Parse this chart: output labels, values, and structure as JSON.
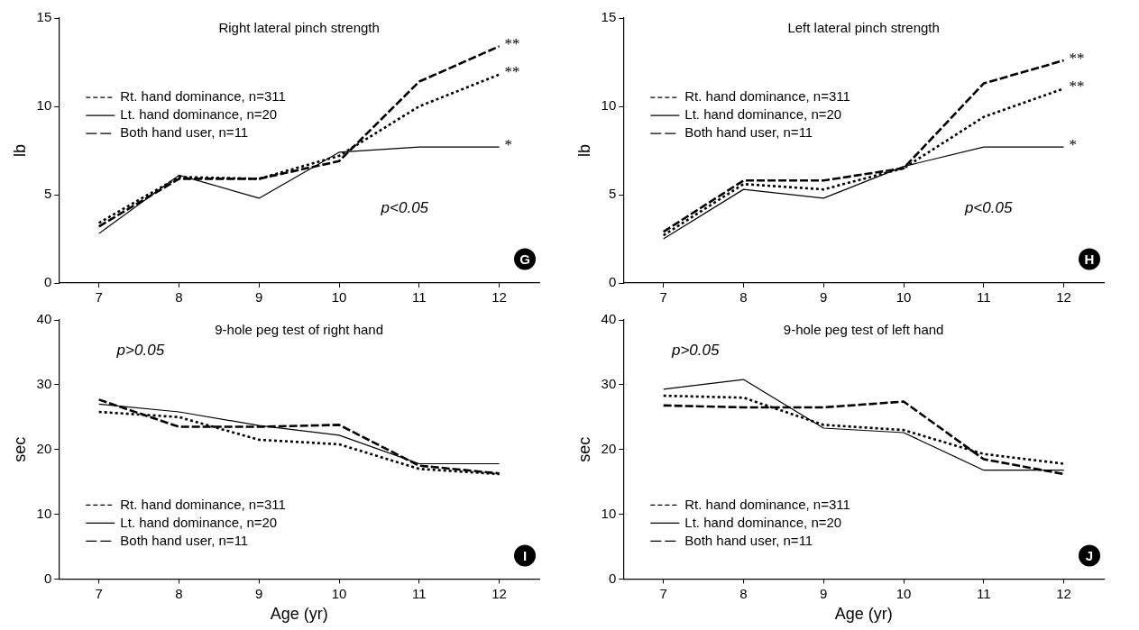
{
  "chart_data": [
    {
      "type": "line",
      "title": "Right lateral pinch strength",
      "ylabel": "lb",
      "categories": [
        "7",
        "8",
        "9",
        "10",
        "11",
        "12"
      ],
      "ylim": [
        0,
        15
      ],
      "yticks": [
        0,
        5,
        10,
        15
      ],
      "grid": false,
      "legend": "left",
      "marker": "none",
      "series": [
        {
          "name": "Rt. hand dominance, n=311",
          "color": "#000000",
          "line_style": "dotted",
          "values": [
            3.4,
            6.0,
            5.9,
            7.2,
            10.0,
            11.8
          ]
        },
        {
          "name": "Lt. hand dominance, n=20",
          "color": "#000000",
          "line_style": "solid",
          "values": [
            2.8,
            6.1,
            4.8,
            7.4,
            7.7,
            7.7
          ]
        },
        {
          "name": "Both hand user, n=11",
          "color": "#000000",
          "line_style": "dashed",
          "values": [
            3.2,
            5.9,
            5.9,
            6.9,
            11.4,
            13.4
          ]
        }
      ],
      "annotations": [
        "p<0.05",
        "G",
        {
          "text": "**",
          "x": "12",
          "y": 13.4
        },
        {
          "text": "**",
          "x": "12",
          "y": 11.8
        },
        {
          "text": "*",
          "x": "12",
          "y": 7.7
        }
      ]
    },
    {
      "type": "line",
      "title": "Left lateral pinch strength",
      "ylabel": "lb",
      "categories": [
        "7",
        "8",
        "9",
        "10",
        "11",
        "12"
      ],
      "ylim": [
        0,
        15
      ],
      "yticks": [
        0,
        5,
        10,
        15
      ],
      "grid": false,
      "legend": "left",
      "marker": "none",
      "series": [
        {
          "name": "Rt. hand dominance, n=311",
          "color": "#000000",
          "line_style": "dotted",
          "values": [
            2.7,
            5.6,
            5.3,
            6.5,
            9.4,
            11.0
          ]
        },
        {
          "name": "Lt. hand dominance, n=20",
          "color": "#000000",
          "line_style": "solid",
          "values": [
            2.5,
            5.3,
            4.8,
            6.6,
            7.7,
            7.7
          ]
        },
        {
          "name": "Both hand user, n=11",
          "color": "#000000",
          "line_style": "dashed",
          "values": [
            2.9,
            5.8,
            5.8,
            6.5,
            11.3,
            12.6
          ]
        }
      ],
      "annotations": [
        "p<0.05",
        "H",
        {
          "text": "**",
          "x": "12",
          "y": 12.6
        },
        {
          "text": "**",
          "x": "12",
          "y": 11.0
        },
        {
          "text": "*",
          "x": "12",
          "y": 7.7
        }
      ]
    },
    {
      "type": "line",
      "title": "9-hole peg test of right hand",
      "ylabel": "sec",
      "xlabel": "Age (yr)",
      "categories": [
        "7",
        "8",
        "9",
        "10",
        "11",
        "12"
      ],
      "ylim": [
        0,
        40
      ],
      "yticks": [
        0,
        10,
        20,
        30,
        40
      ],
      "grid": false,
      "legend": "bottom left",
      "marker": "none",
      "series": [
        {
          "name": "Rt. hand dominance, n=311",
          "color": "#000000",
          "line_style": "dotted",
          "values": [
            25.8,
            25.0,
            21.5,
            20.8,
            17.0,
            16.2
          ]
        },
        {
          "name": "Lt. hand dominance, n=20",
          "color": "#000000",
          "line_style": "solid",
          "values": [
            27.0,
            25.8,
            23.7,
            22.2,
            17.8,
            17.8
          ]
        },
        {
          "name": "Both hand user, n=11",
          "color": "#000000",
          "line_style": "dashed",
          "values": [
            27.7,
            23.5,
            23.5,
            23.8,
            17.5,
            16.3
          ]
        }
      ],
      "annotations": [
        "p>0.05",
        "I"
      ]
    },
    {
      "type": "line",
      "title": "9-hole peg test of left hand",
      "ylabel": "sec",
      "xlabel": "Age (yr)",
      "categories": [
        "7",
        "8",
        "9",
        "10",
        "11",
        "12"
      ],
      "ylim": [
        0,
        40
      ],
      "yticks": [
        0,
        10,
        20,
        30,
        40
      ],
      "grid": false,
      "legend": "bottom left",
      "marker": "none",
      "series": [
        {
          "name": "Rt. hand dominance, n=311",
          "color": "#000000",
          "line_style": "dotted",
          "values": [
            28.3,
            28.0,
            23.8,
            23.0,
            19.3,
            17.8
          ]
        },
        {
          "name": "Lt. hand dominance, n=20",
          "color": "#000000",
          "line_style": "solid",
          "values": [
            29.3,
            30.8,
            23.3,
            22.6,
            16.8,
            16.8
          ]
        },
        {
          "name": "Both hand user, n=11",
          "color": "#000000",
          "line_style": "dashed",
          "values": [
            26.8,
            26.5,
            26.5,
            27.4,
            18.5,
            16.2
          ]
        }
      ],
      "annotations": [
        "p>0.05",
        "J"
      ]
    }
  ]
}
